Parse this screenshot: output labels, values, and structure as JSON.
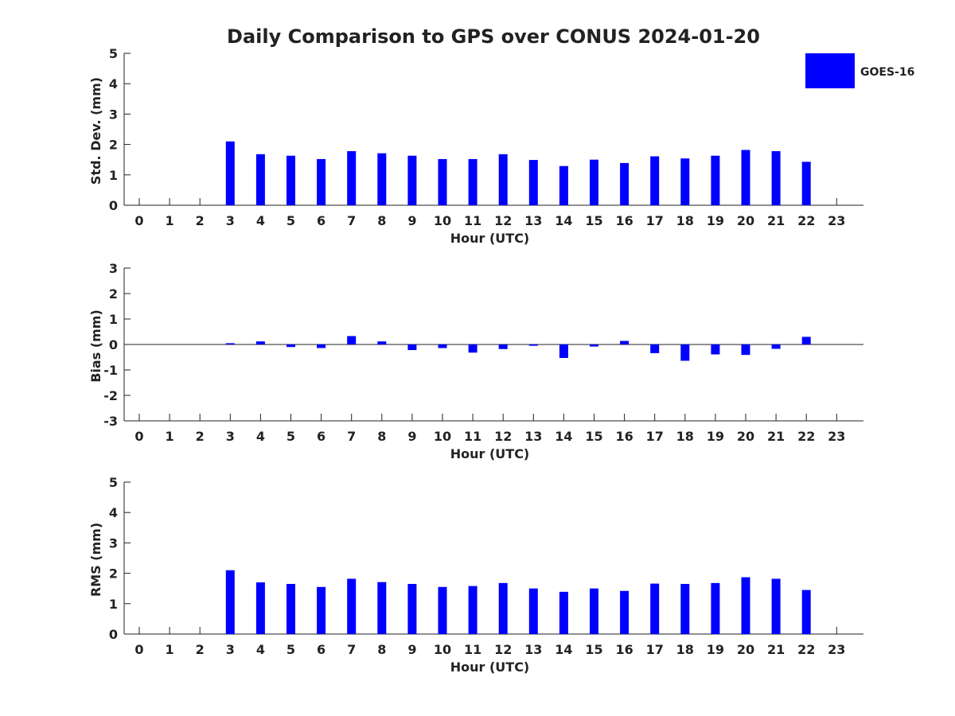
{
  "figure": {
    "title": "Daily Comparison to GPS over CONUS 2024-01-20"
  },
  "legend": {
    "label": "GOES-16",
    "color": "#0000ff",
    "placement": "top-right"
  },
  "chart_data": [
    {
      "type": "bar",
      "name": "std-dev",
      "xlabel": "Hour (UTC)",
      "ylabel": "Std. Dev. (mm)",
      "ylim": [
        0,
        5
      ],
      "yticks": [
        "0",
        "1",
        "2",
        "3",
        "4",
        "5"
      ],
      "categories": [
        "0",
        "1",
        "2",
        "3",
        "4",
        "5",
        "6",
        "7",
        "8",
        "9",
        "10",
        "11",
        "12",
        "13",
        "14",
        "15",
        "16",
        "17",
        "18",
        "19",
        "20",
        "21",
        "22",
        "23"
      ],
      "series": [
        {
          "name": "GOES-16",
          "values": [
            null,
            null,
            null,
            2.1,
            1.68,
            1.63,
            1.52,
            1.78,
            1.71,
            1.63,
            1.52,
            1.52,
            1.68,
            1.49,
            1.29,
            1.5,
            1.39,
            1.61,
            1.54,
            1.63,
            1.82,
            1.78,
            1.43,
            null
          ]
        }
      ]
    },
    {
      "type": "bar",
      "name": "bias",
      "xlabel": "Hour (UTC)",
      "ylabel": "Bias (mm)",
      "ylim": [
        -3,
        3
      ],
      "yticks": [
        "-3",
        "-2",
        "-1",
        "0",
        "1",
        "2",
        "3"
      ],
      "categories": [
        "0",
        "1",
        "2",
        "3",
        "4",
        "5",
        "6",
        "7",
        "8",
        "9",
        "10",
        "11",
        "12",
        "13",
        "14",
        "15",
        "16",
        "17",
        "18",
        "19",
        "20",
        "21",
        "22",
        "23"
      ],
      "series": [
        {
          "name": "GOES-16",
          "values": [
            null,
            null,
            null,
            0.05,
            0.12,
            -0.1,
            -0.14,
            0.33,
            0.12,
            -0.22,
            -0.14,
            -0.32,
            -0.18,
            -0.05,
            -0.53,
            -0.08,
            0.14,
            -0.34,
            -0.64,
            -0.39,
            -0.41,
            -0.17,
            0.3,
            null
          ]
        }
      ]
    },
    {
      "type": "bar",
      "name": "rms",
      "xlabel": "Hour (UTC)",
      "ylabel": "RMS (mm)",
      "ylim": [
        0,
        5
      ],
      "yticks": [
        "0",
        "1",
        "2",
        "3",
        "4",
        "5"
      ],
      "categories": [
        "0",
        "1",
        "2",
        "3",
        "4",
        "5",
        "6",
        "7",
        "8",
        "9",
        "10",
        "11",
        "12",
        "13",
        "14",
        "15",
        "16",
        "17",
        "18",
        "19",
        "20",
        "21",
        "22",
        "23"
      ],
      "series": [
        {
          "name": "GOES-16",
          "values": [
            null,
            null,
            null,
            2.1,
            1.7,
            1.65,
            1.55,
            1.82,
            1.71,
            1.65,
            1.55,
            1.58,
            1.68,
            1.5,
            1.39,
            1.5,
            1.42,
            1.66,
            1.65,
            1.68,
            1.87,
            1.82,
            1.45,
            null
          ]
        }
      ]
    }
  ]
}
